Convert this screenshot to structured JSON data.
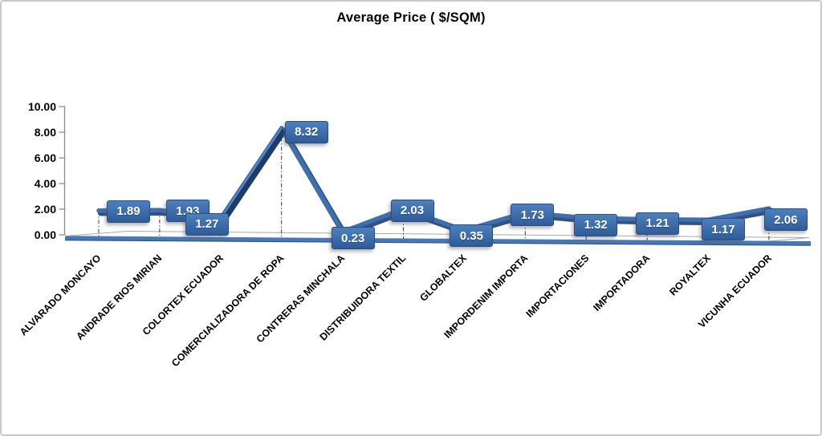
{
  "chart_data": {
    "type": "line",
    "title": "Average Price ( $/SQM)",
    "categories": [
      "ALVARADO MONCAYO",
      "ANDRADE RIOS MIRIAN",
      "COLORTEX ECUADOR",
      "COMERCIALIZADORA DE ROPA",
      "CONTRERAS MINCHALA",
      "DISTRIBUIDORA TEXTIL",
      "GLOBALTEX",
      "IMPORDENIM IMPORTA",
      "IMPORTACIONES",
      "IMPORTADORA",
      "ROYALTEX",
      "VICUNHA ECUADOR"
    ],
    "values": [
      1.89,
      1.93,
      1.27,
      8.32,
      0.23,
      2.03,
      0.35,
      1.73,
      1.32,
      1.21,
      1.17,
      2.06
    ],
    "ylim": [
      0,
      10
    ],
    "ytick_step": 2,
    "ytick_labels": [
      "0.00",
      "2.00",
      "4.00",
      "6.00",
      "8.00",
      "10.00"
    ],
    "grid": false,
    "legend": false,
    "style_3d": true,
    "data_labels_shown": true,
    "colors": {
      "line": "#3e70ae",
      "line_dark_side": "#1d3c6b",
      "line_shadow": "#26497b",
      "base_line": "#4679b6",
      "base_line_edge": "#2c5590",
      "label_box_top": "#4d80bd",
      "label_box_bottom": "#2e5c98",
      "label_box_border": "#274e88",
      "label_text": "#ffffff",
      "axis": "#8c8c8c",
      "floor_stroke": "#a9a9a9",
      "dropline": "#3a3a3a",
      "title_color": "#000000"
    }
  }
}
